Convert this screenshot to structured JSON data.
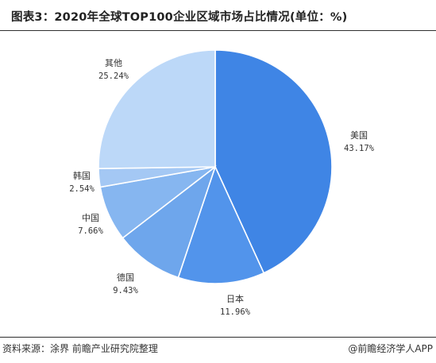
{
  "header": {
    "title": "图表3：2020年全球TOP100企业区域市场占比情况(单位：%)"
  },
  "footer": {
    "source": "资料来源：涂界 前瞻产业研究院整理",
    "credit": "@前瞻经济学人APP"
  },
  "chart_data": {
    "type": "pie",
    "title": "图表3：2020年全球TOP100企业区域市场占比情况(单位：%)",
    "unit": "%",
    "slices": [
      {
        "label": "美国",
        "value": 43.17,
        "value_text": "43.17%",
        "color": "#3f85e5"
      },
      {
        "label": "日本",
        "value": 11.96,
        "value_text": "11.96%",
        "color": "#5294eb"
      },
      {
        "label": "德国",
        "value": 9.43,
        "value_text": "9.43%",
        "color": "#6ea6ec"
      },
      {
        "label": "中国",
        "value": 7.66,
        "value_text": "7.66%",
        "color": "#86b6f0"
      },
      {
        "label": "韩国",
        "value": 2.54,
        "value_text": "2.54%",
        "color": "#a4c8f4"
      },
      {
        "label": "其他",
        "value": 25.24,
        "value_text": "25.24%",
        "color": "#bcd8f8"
      }
    ],
    "start_angle_deg": 0,
    "direction": "clockwise"
  }
}
